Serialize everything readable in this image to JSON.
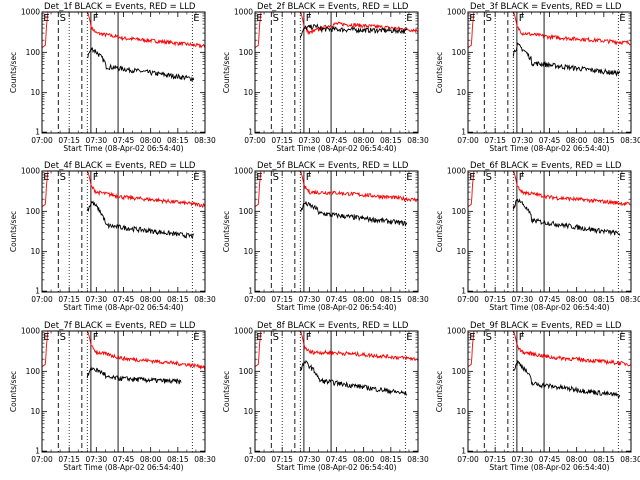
{
  "chart_data": {
    "type": "line",
    "layout": "3x3 grid",
    "x_ticks": [
      "07:00",
      "07:15",
      "07:30",
      "07:45",
      "08:00",
      "08:15",
      "08:30"
    ],
    "x_range_minutes": [
      0,
      90
    ],
    "xlabel": "Start Time (08-Apr-02 06:54:40)",
    "ylabel": "Counts/sec",
    "y_scale": "log",
    "y_range": [
      1,
      1000
    ],
    "y_ticks": [
      "1",
      "10",
      "100",
      "1000"
    ],
    "series_colors": {
      "events": "#000000",
      "lld": "#ff0000"
    },
    "vlines": {
      "dotted_minutes": [
        15,
        25,
        83
      ],
      "dashed_minutes": [
        9,
        22
      ],
      "solid_minutes": [
        27,
        42
      ]
    },
    "markers": [
      {
        "text": "E",
        "minute": 0.7
      },
      {
        "text": "S",
        "minute": 9.7
      },
      {
        "text": "F",
        "minute": 28
      },
      {
        "text": "E",
        "minute": 83.5
      }
    ],
    "panels": [
      {
        "title": "Det_1f BLACK = Events, RED = LLD",
        "lld_end": 140,
        "lld_base": 140,
        "ev_peak": 125,
        "ev_mid": 45,
        "ev_end": 22,
        "ev_stop": 84
      },
      {
        "title": "Det_2f BLACK = Events, RED = LLD",
        "lld_end": 350,
        "lld_base": 320,
        "ev_peak": 400,
        "ev_mid": 380,
        "ev_end": 340,
        "ev_stop": 84
      },
      {
        "title": "Det_3f BLACK = Events, RED = LLD",
        "lld_end": 170,
        "lld_base": 150,
        "ev_peak": 150,
        "ev_mid": 55,
        "ev_end": 30,
        "ev_stop": 84
      },
      {
        "title": "Det_4f BLACK = Events, RED = LLD",
        "lld_end": 140,
        "lld_base": 140,
        "ev_peak": 170,
        "ev_mid": 45,
        "ev_end": 24,
        "ev_stop": 84
      },
      {
        "title": "Det_5f BLACK = Events, RED = LLD",
        "lld_end": 190,
        "lld_base": 180,
        "ev_peak": 160,
        "ev_mid": 90,
        "ev_end": 50,
        "ev_stop": 84
      },
      {
        "title": "Det_6f BLACK = Events, RED = LLD",
        "lld_end": 150,
        "lld_base": 140,
        "ev_peak": 200,
        "ev_mid": 60,
        "ev_end": 28,
        "ev_stop": 84
      },
      {
        "title": "Det_7f BLACK = Events, RED = LLD",
        "lld_end": 130,
        "lld_base": 130,
        "ev_peak": 120,
        "ev_mid": 70,
        "ev_end": 55,
        "ev_stop": 77
      },
      {
        "title": "Det_8f BLACK = Events, RED = LLD",
        "lld_end": 200,
        "lld_base": 180,
        "ev_peak": 170,
        "ev_mid": 60,
        "ev_end": 28,
        "ev_stop": 84
      },
      {
        "title": "Det_9f BLACK = Events, RED = LLD",
        "lld_end": 150,
        "lld_base": 140,
        "ev_peak": 170,
        "ev_mid": 50,
        "ev_end": 25,
        "ev_stop": 84
      }
    ]
  }
}
